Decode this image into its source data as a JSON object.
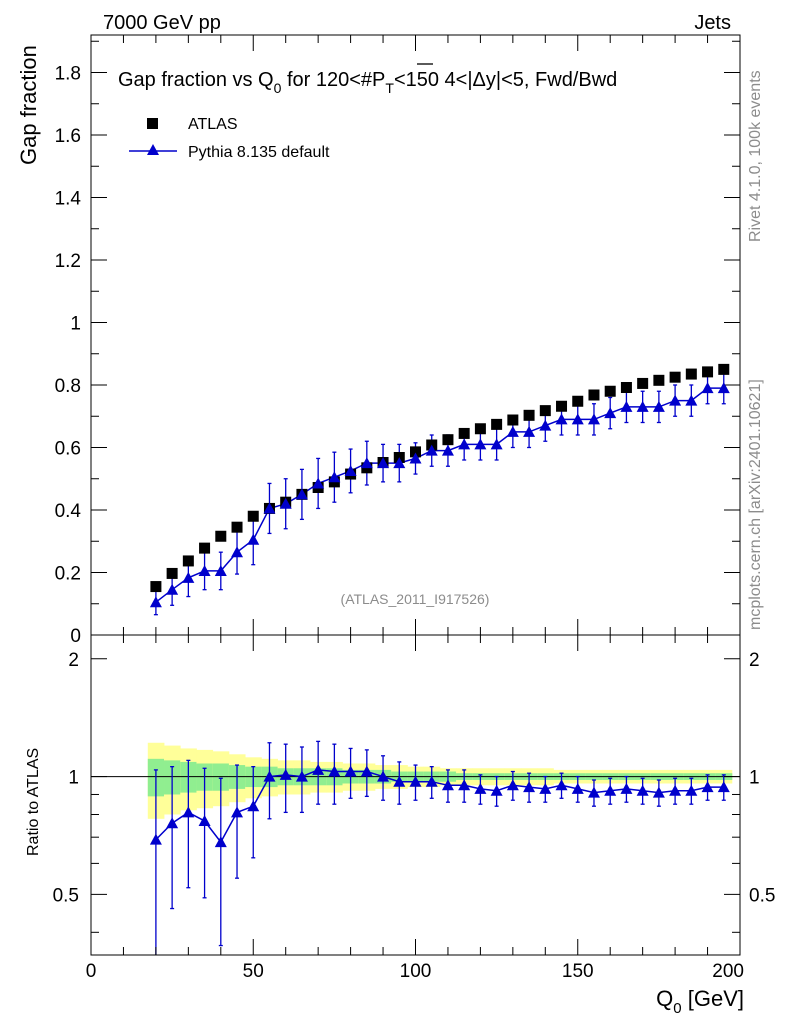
{
  "header": {
    "left": "7000 GeV pp",
    "right": "Jets"
  },
  "chart_data": {
    "type": "scatter",
    "title": "Gap fraction vs Q_0 for 120<#P_T<150  4<|Δy|<5, Fwd/Bwd",
    "title_parts": {
      "a": "Gap fraction vs Q",
      "a_sub": "0",
      "b": " for 120<#",
      "p": "P",
      "p_sub": "T",
      "c": "<150  4<|Δy|<5, Fwd/Bwd"
    },
    "xlabel": "Q_0 [GeV]",
    "xlabel_parts": {
      "main": "Q",
      "sub": "0",
      "unit": " [GeV]"
    },
    "ylabel": "Gap fraction",
    "ratio_ylabel": "Ratio to ATLAS",
    "xlim": [
      0,
      200
    ],
    "ylim": [
      0,
      1.92
    ],
    "ratio_ylim": [
      0.35,
      2.3
    ],
    "xticks": [
      "0",
      "50",
      "100",
      "150",
      "200"
    ],
    "yticks": [
      "0",
      "0.2",
      "0.4",
      "0.6",
      "0.8",
      "1",
      "1.2",
      "1.4",
      "1.6",
      "1.8"
    ],
    "ratio_yticks": [
      "0.5",
      "1",
      "2"
    ],
    "ratio_yticks_right": [
      "0.5",
      "1",
      "2"
    ],
    "legend": {
      "data": "ATLAS",
      "mc": "Pythia 8.135 default"
    },
    "watermark": "(ATLAS_2011_I917526)",
    "side_top": "Rivet 4.1.0,  100k events",
    "side_bottom": "mcplots.cern.ch [arXiv:2401.10621]",
    "x": [
      20,
      25,
      30,
      35,
      40,
      45,
      50,
      55,
      60,
      65,
      70,
      75,
      80,
      85,
      90,
      95,
      100,
      105,
      110,
      115,
      120,
      125,
      130,
      135,
      140,
      145,
      150,
      155,
      160,
      165,
      170,
      175,
      180,
      185,
      190,
      195
    ],
    "series": [
      {
        "name": "ATLAS",
        "values": [
          0.155,
          0.197,
          0.237,
          0.278,
          0.316,
          0.345,
          0.38,
          0.405,
          0.425,
          0.45,
          0.472,
          0.49,
          0.515,
          0.535,
          0.552,
          0.568,
          0.586,
          0.608,
          0.625,
          0.645,
          0.66,
          0.674,
          0.688,
          0.703,
          0.718,
          0.732,
          0.748,
          0.768,
          0.78,
          0.792,
          0.805,
          0.815,
          0.825,
          0.835,
          0.842,
          0.85
        ]
      },
      {
        "name": "Pythia 8.135 default",
        "values": [
          0.105,
          0.145,
          0.183,
          0.205,
          0.205,
          0.265,
          0.305,
          0.405,
          0.42,
          0.45,
          0.485,
          0.505,
          0.525,
          0.55,
          0.55,
          0.55,
          0.565,
          0.59,
          0.59,
          0.61,
          0.61,
          0.61,
          0.65,
          0.65,
          0.67,
          0.69,
          0.69,
          0.69,
          0.71,
          0.73,
          0.73,
          0.73,
          0.75,
          0.75,
          0.79,
          0.79
        ],
        "errors": [
          0.04,
          0.05,
          0.06,
          0.06,
          0.06,
          0.07,
          0.08,
          0.08,
          0.08,
          0.08,
          0.08,
          0.08,
          0.07,
          0.07,
          0.06,
          0.06,
          0.05,
          0.05,
          0.05,
          0.05,
          0.05,
          0.05,
          0.05,
          0.05,
          0.05,
          0.05,
          0.05,
          0.05,
          0.05,
          0.05,
          0.05,
          0.05,
          0.05,
          0.05,
          0.05,
          0.05
        ]
      }
    ],
    "ratio": {
      "values": [
        0.69,
        0.76,
        0.81,
        0.77,
        0.68,
        0.81,
        0.84,
        1.0,
        1.01,
        1.0,
        1.04,
        1.03,
        1.03,
        1.03,
        1.0,
        0.97,
        0.97,
        0.97,
        0.95,
        0.95,
        0.93,
        0.92,
        0.95,
        0.94,
        0.93,
        0.95,
        0.93,
        0.91,
        0.92,
        0.93,
        0.92,
        0.91,
        0.92,
        0.92,
        0.94,
        0.94
      ],
      "errors": [
        0.35,
        0.3,
        0.29,
        0.28,
        0.31,
        0.26,
        0.22,
        0.22,
        0.2,
        0.19,
        0.19,
        0.18,
        0.15,
        0.14,
        0.13,
        0.12,
        0.1,
        0.09,
        0.09,
        0.09,
        0.08,
        0.08,
        0.08,
        0.08,
        0.07,
        0.07,
        0.07,
        0.07,
        0.07,
        0.07,
        0.07,
        0.07,
        0.07,
        0.07,
        0.07,
        0.07
      ],
      "band_inner": [
        0.11,
        0.1,
        0.09,
        0.08,
        0.08,
        0.07,
        0.06,
        0.06,
        0.05,
        0.05,
        0.05,
        0.05,
        0.04,
        0.04,
        0.04,
        0.03,
        0.03,
        0.03,
        0.03,
        0.02,
        0.02,
        0.02,
        0.02,
        0.02,
        0.02,
        0.02,
        0.02,
        0.02,
        0.02,
        0.02,
        0.02,
        0.02,
        0.02,
        0.02,
        0.02,
        0.02
      ],
      "band_outer": [
        0.22,
        0.2,
        0.18,
        0.17,
        0.16,
        0.14,
        0.12,
        0.11,
        0.1,
        0.1,
        0.09,
        0.09,
        0.08,
        0.08,
        0.07,
        0.07,
        0.06,
        0.06,
        0.05,
        0.05,
        0.05,
        0.05,
        0.05,
        0.05,
        0.05,
        0.04,
        0.04,
        0.04,
        0.04,
        0.04,
        0.04,
        0.04,
        0.04,
        0.04,
        0.04,
        0.04
      ]
    },
    "colors": {
      "data": "#000000",
      "mc": "#0000cc",
      "band_inner": "#90ee90",
      "band_outer": "#ffff99",
      "side_text": "#8c8c8c"
    }
  }
}
